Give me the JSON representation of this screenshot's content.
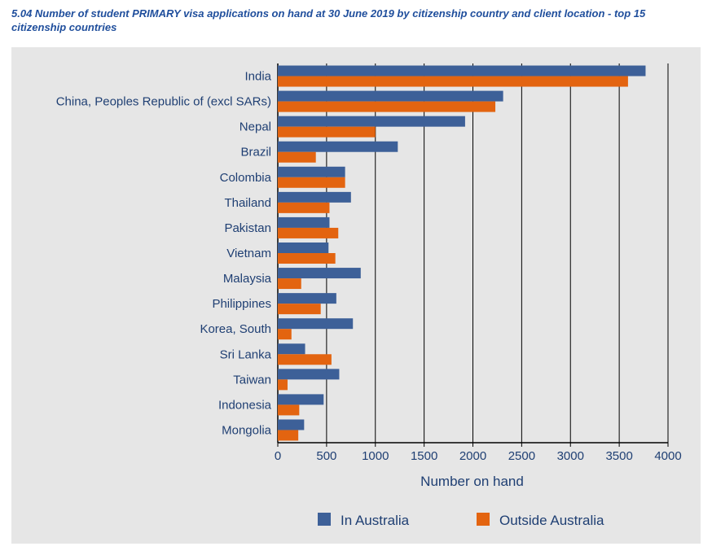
{
  "title": "5.04 Number of student PRIMARY visa applications on hand at 30 June 2019 by citizenship country and client location - top 15 citizenship countries",
  "colors": {
    "in_australia": "#3d6098",
    "outside_australia": "#e36410",
    "panel_bg": "#e6e6e6",
    "text": "#1f3f73"
  },
  "chart_data": {
    "type": "bar",
    "orientation": "horizontal",
    "title": "5.04 Number of student PRIMARY visa applications on hand at 30 June 2019 by citizenship country and client location - top 15 citizenship countries",
    "xlabel": "Number on hand",
    "ylabel": "",
    "xlim": [
      0,
      4000
    ],
    "xticks": [
      0,
      500,
      1000,
      1500,
      2000,
      2500,
      3000,
      3500,
      4000
    ],
    "grid": "vertical",
    "legend_position": "bottom",
    "categories": [
      "India",
      "China, Peoples Republic of (excl SARs)",
      "Nepal",
      "Brazil",
      "Colombia",
      "Thailand",
      "Pakistan",
      "Vietnam",
      "Malaysia",
      "Philippines",
      "Korea, South",
      "Sri Lanka",
      "Taiwan",
      "Indonesia",
      "Mongolia"
    ],
    "series": [
      {
        "name": "In Australia",
        "values": [
          3770,
          2310,
          1920,
          1230,
          690,
          750,
          530,
          520,
          850,
          600,
          770,
          280,
          630,
          470,
          270
        ]
      },
      {
        "name": "Outside Australia",
        "values": [
          3590,
          2230,
          1000,
          390,
          690,
          530,
          620,
          590,
          240,
          440,
          140,
          550,
          100,
          220,
          210
        ]
      }
    ]
  }
}
